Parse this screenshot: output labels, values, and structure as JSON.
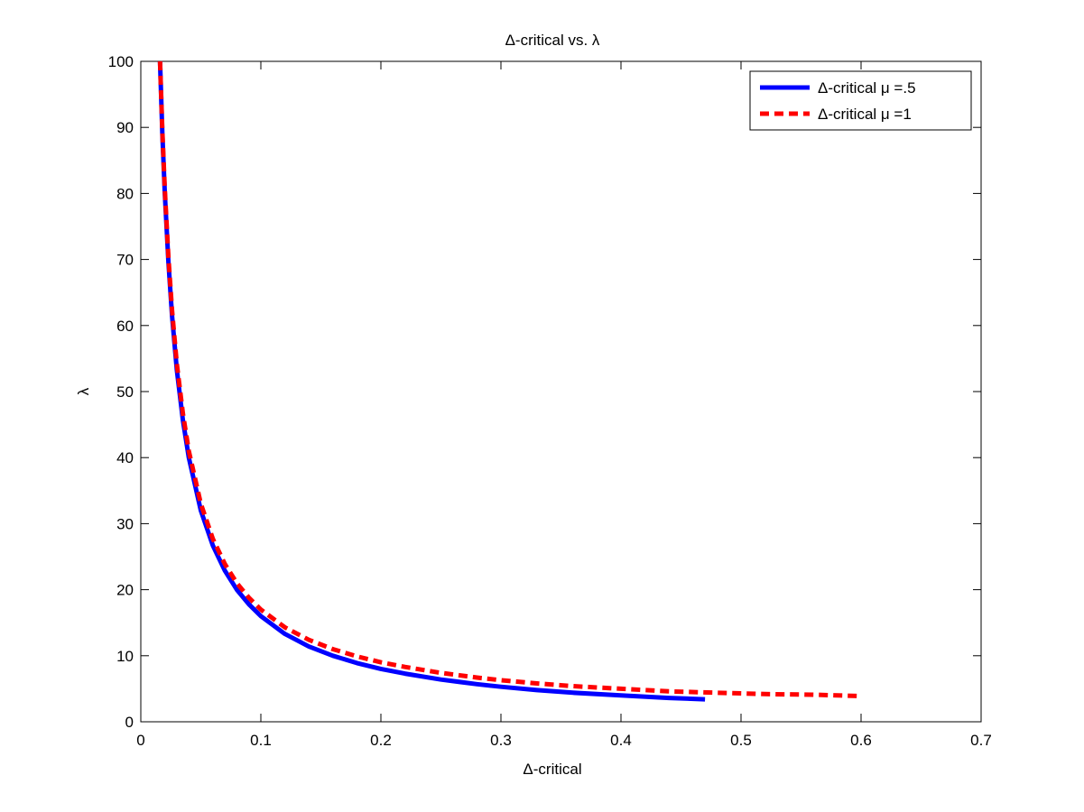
{
  "chart_data": {
    "type": "line",
    "title": "Δ-critical vs.   λ",
    "xlabel": "Δ-critical",
    "ylabel": "λ",
    "xlim": [
      0,
      0.7
    ],
    "ylim": [
      0,
      100
    ],
    "xticks": [
      0,
      0.1,
      0.2,
      0.3,
      0.4,
      0.5,
      0.6,
      0.7
    ],
    "xtick_labels": [
      "0",
      "0.1",
      "0.2",
      "0.3",
      "0.4",
      "0.5",
      "0.6",
      "0.7"
    ],
    "yticks": [
      0,
      10,
      20,
      30,
      40,
      50,
      60,
      70,
      80,
      90,
      100
    ],
    "ytick_labels": [
      "0",
      "10",
      "20",
      "30",
      "40",
      "50",
      "60",
      "70",
      "80",
      "90",
      "100"
    ],
    "grid": false,
    "legend_position": "top-right",
    "series": [
      {
        "name": "Δ-critical  μ  =.5",
        "color": "#0000ff",
        "style": "solid",
        "x": [
          0.016,
          0.018,
          0.02,
          0.023,
          0.026,
          0.03,
          0.035,
          0.04,
          0.05,
          0.06,
          0.07,
          0.08,
          0.09,
          0.1,
          0.12,
          0.14,
          0.16,
          0.18,
          0.2,
          0.22,
          0.25,
          0.28,
          0.3,
          0.33,
          0.36,
          0.4,
          0.44,
          0.47
        ],
        "y": [
          100,
          88.9,
          80,
          69.6,
          61.5,
          53.3,
          45.7,
          40,
          32,
          26.7,
          22.9,
          20,
          17.8,
          16,
          13.3,
          11.4,
          10,
          8.9,
          8,
          7.3,
          6.4,
          5.7,
          5.3,
          4.8,
          4.4,
          4,
          3.6,
          3.4
        ]
      },
      {
        "name": "Δ-critical  μ  =1",
        "color": "#ff0000",
        "style": "dashed",
        "x": [
          0.016,
          0.018,
          0.02,
          0.023,
          0.026,
          0.03,
          0.035,
          0.04,
          0.05,
          0.06,
          0.07,
          0.08,
          0.09,
          0.1,
          0.12,
          0.14,
          0.16,
          0.18,
          0.2,
          0.22,
          0.25,
          0.28,
          0.3,
          0.33,
          0.36,
          0.4,
          0.44,
          0.48,
          0.52,
          0.56,
          0.6
        ],
        "y": [
          100,
          89.3,
          80.6,
          70.3,
          62.3,
          54.2,
          46.7,
          41,
          33,
          27.7,
          23.9,
          21,
          18.8,
          17,
          14.3,
          12.4,
          11,
          9.9,
          9,
          8.3,
          7.4,
          6.7,
          6.3,
          5.8,
          5.4,
          5,
          4.6,
          4.4,
          4.2,
          4.1,
          3.9
        ]
      }
    ]
  }
}
